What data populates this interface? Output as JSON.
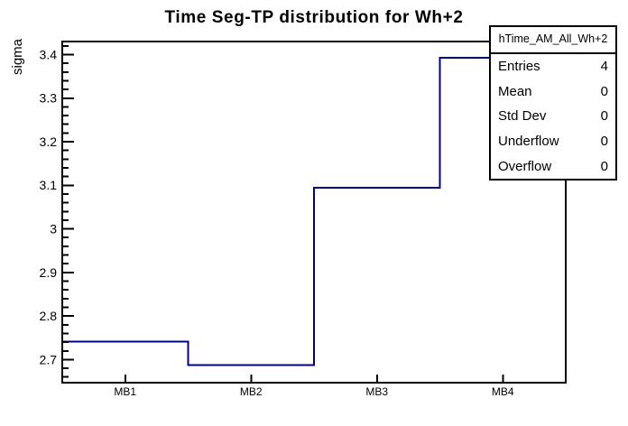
{
  "title": "Time Seg-TP distribution for Wh+2",
  "chart_data": {
    "type": "bar",
    "style": "step-histogram-outline",
    "categories": [
      "MB1",
      "MB2",
      "MB3",
      "MB4"
    ],
    "values": [
      2.741,
      2.687,
      3.094,
      3.393
    ],
    "title": "Time Seg-TP distribution for Wh+2",
    "xlabel": "",
    "ylabel": "sigma",
    "ylim": [
      2.647,
      3.43
    ],
    "y_major_ticks": [
      "2.7",
      "2.8",
      "2.9",
      "3",
      "3.1",
      "3.2",
      "3.3",
      "3.4"
    ],
    "y_minor_step": 0.02,
    "grid": false,
    "legend_position": "none",
    "line_color": "#00008b",
    "frame_color": "#000000"
  },
  "stats_box": {
    "header": "hTime_AM_All_Wh+2",
    "rows": [
      {
        "label": "Entries",
        "value": "4"
      },
      {
        "label": "Mean",
        "value": "0"
      },
      {
        "label": "Std Dev",
        "value": "0"
      },
      {
        "label": "Underflow",
        "value": "0"
      },
      {
        "label": "Overflow",
        "value": "0"
      }
    ]
  }
}
